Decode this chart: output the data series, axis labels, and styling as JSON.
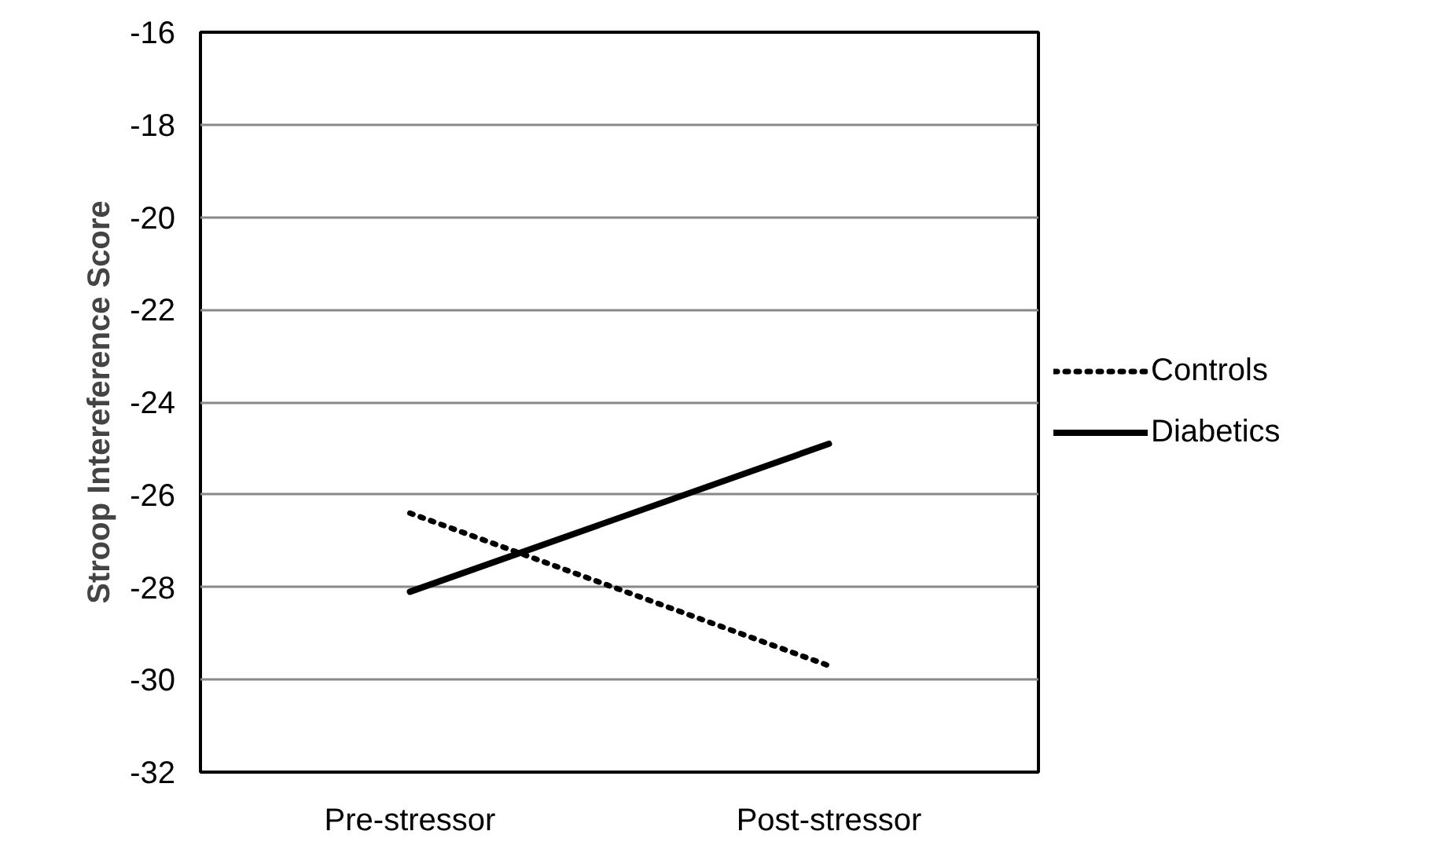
{
  "chart_data": {
    "type": "line",
    "ylabel": "Stroop Intereference Score",
    "categories": [
      "Pre-stressor",
      "Post-stressor"
    ],
    "series": [
      {
        "name": "Controls",
        "color": "#000000",
        "line_style": "dotted",
        "values": [
          -26.4,
          -29.7
        ]
      },
      {
        "name": "Diabetics",
        "color": "#000000",
        "line_style": "solid",
        "values": [
          -28.1,
          -24.9
        ]
      }
    ],
    "ylim": [
      -32,
      -16
    ],
    "yticks": [
      -32,
      -30,
      -28,
      -26,
      -24,
      -22,
      -20,
      -18,
      -16
    ],
    "grid": "y",
    "legend": "right",
    "marker": "none"
  }
}
